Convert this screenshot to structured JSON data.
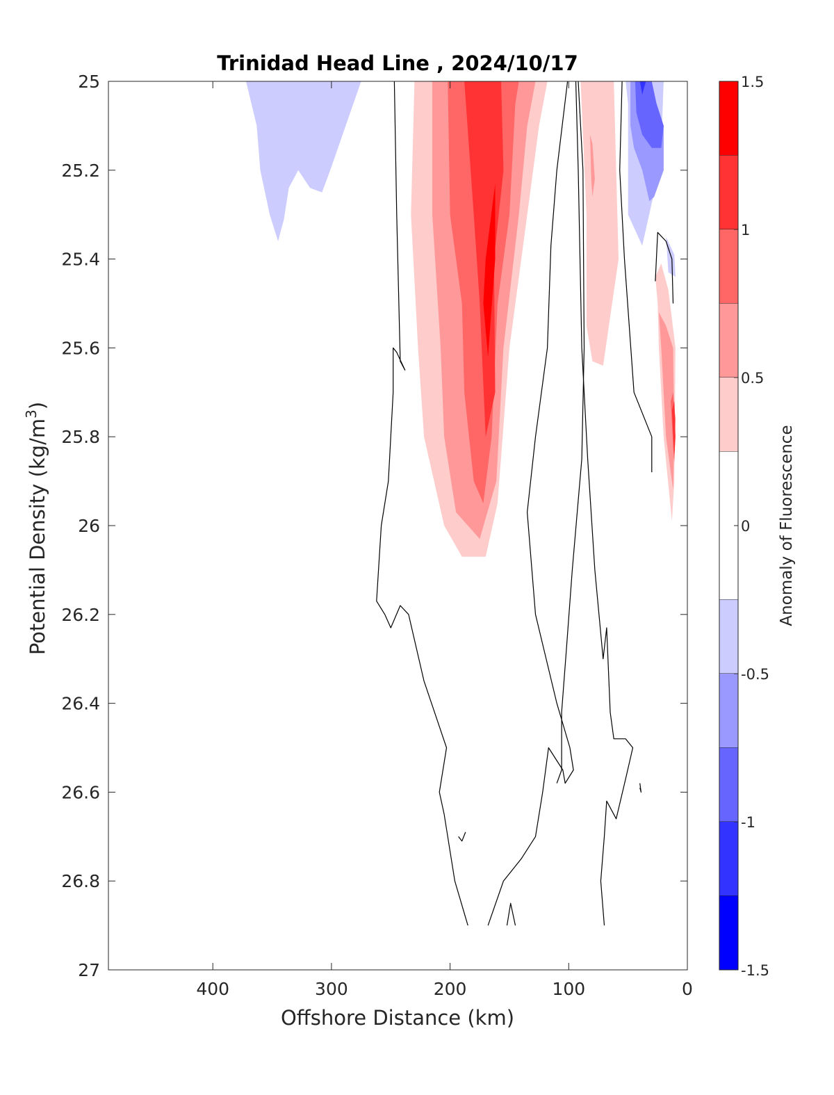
{
  "chart_data": {
    "type": "contour",
    "title": "Trinidad Head Line , 2024/10/17",
    "xlabel": "Offshore Distance (km)",
    "ylabel_main": "Potential Density (kg/m",
    "ylabel_sup": "3",
    "ylabel_close": ")",
    "xlim": [
      488,
      0
    ],
    "x_reversed": true,
    "ylim": [
      25,
      27
    ],
    "y_reversed": true,
    "x_ticks": [
      400,
      300,
      200,
      100,
      0
    ],
    "x_tick_labels": [
      "400",
      "300",
      "200",
      "100",
      "0"
    ],
    "y_ticks": [
      25,
      25.2,
      25.4,
      25.6,
      25.8,
      26,
      26.2,
      26.4,
      26.6,
      26.8,
      27
    ],
    "y_tick_labels": [
      "25",
      "25.2",
      "25.4",
      "25.6",
      "25.8",
      "26",
      "26.2",
      "26.4",
      "26.6",
      "26.8",
      "27"
    ],
    "grid": false,
    "colorbar": {
      "label": "Anomaly of Fluorescence",
      "range": [
        -1.5,
        1.5
      ],
      "ticks": [
        1.5,
        1,
        0.5,
        0,
        -0.5,
        -1,
        -1.5
      ],
      "tick_labels": [
        "1.5",
        "1",
        "0.5",
        "0",
        "-0.5",
        "-1",
        "-1.5"
      ],
      "levels": [
        {
          "from": 1.25,
          "to": 1.5,
          "color": "#ff0000"
        },
        {
          "from": 1.0,
          "to": 1.25,
          "color": "#ff3333"
        },
        {
          "from": 0.75,
          "to": 1.0,
          "color": "#ff6666"
        },
        {
          "from": 0.5,
          "to": 0.75,
          "color": "#ff9999"
        },
        {
          "from": 0.25,
          "to": 0.5,
          "color": "#ffcccc"
        },
        {
          "from": -0.25,
          "to": 0.25,
          "color": "#ffffff"
        },
        {
          "from": -0.5,
          "to": -0.25,
          "color": "#ccccff"
        },
        {
          "from": -0.75,
          "to": -0.5,
          "color": "#9999ff"
        },
        {
          "from": -1.0,
          "to": -0.75,
          "color": "#6666ff"
        },
        {
          "from": -1.25,
          "to": -1.0,
          "color": "#3333ff"
        },
        {
          "from": -1.5,
          "to": -1.25,
          "color": "#0000ff"
        }
      ]
    },
    "filled_regions": [
      {
        "level": -0.25,
        "color": "#ccccff",
        "points": [
          [
            372,
            25
          ],
          [
            363,
            25.1
          ],
          [
            360,
            25.2
          ],
          [
            352,
            25.3
          ],
          [
            345,
            25.36
          ],
          [
            340,
            25.31
          ],
          [
            336,
            25.24
          ],
          [
            328,
            25.2
          ],
          [
            318,
            25.24
          ],
          [
            308,
            25.25
          ],
          [
            301,
            25.2
          ],
          [
            288,
            25.1
          ],
          [
            275,
            25
          ]
        ]
      },
      {
        "level": 0.25,
        "color": "#ffcccc",
        "points": [
          [
            230,
            25
          ],
          [
            233,
            25.3
          ],
          [
            227,
            25.6
          ],
          [
            222,
            25.8
          ],
          [
            205,
            26
          ],
          [
            190,
            26.07
          ],
          [
            170,
            26.07
          ],
          [
            160,
            25.95
          ],
          [
            150,
            25.6
          ],
          [
            135,
            25.3
          ],
          [
            125,
            25.1
          ],
          [
            118,
            25
          ]
        ]
      },
      {
        "level": 0.5,
        "color": "#ff9999",
        "points": [
          [
            215,
            25
          ],
          [
            215,
            25.3
          ],
          [
            208,
            25.6
          ],
          [
            205,
            25.8
          ],
          [
            195,
            25.97
          ],
          [
            175,
            26.03
          ],
          [
            161,
            25.9
          ],
          [
            155,
            25.6
          ],
          [
            142,
            25.3
          ],
          [
            135,
            25.1
          ],
          [
            128,
            25
          ]
        ]
      },
      {
        "level": 0.75,
        "color": "#ff6666",
        "points": [
          [
            202,
            25
          ],
          [
            200,
            25.3
          ],
          [
            190,
            25.5
          ],
          [
            188,
            25.7
          ],
          [
            180,
            25.9
          ],
          [
            172,
            25.95
          ],
          [
            165,
            25.8
          ],
          [
            160,
            25.5
          ],
          [
            150,
            25.3
          ],
          [
            145,
            25.05
          ],
          [
            142,
            25
          ]
        ]
      },
      {
        "level": 1.0,
        "color": "#ff3333",
        "points": [
          [
            188,
            25
          ],
          [
            180,
            25.3
          ],
          [
            175,
            25.5
          ],
          [
            170,
            25.8
          ],
          [
            162,
            25.7
          ],
          [
            163,
            25.4
          ],
          [
            155,
            25.2
          ],
          [
            157,
            25
          ]
        ]
      },
      {
        "level": 1.25,
        "color": "#ff0000",
        "points": [
          [
            162,
            25.23
          ],
          [
            170,
            25.4
          ],
          [
            172,
            25.5
          ],
          [
            168,
            25.62
          ],
          [
            162,
            25.4
          ]
        ]
      },
      {
        "level": 0.25,
        "color": "#ffcccc",
        "points": [
          [
            90,
            25
          ],
          [
            85,
            25.3
          ],
          [
            85,
            25.55
          ],
          [
            80,
            25.63
          ],
          [
            71,
            25.64
          ],
          [
            58,
            25.4
          ],
          [
            61,
            25.1
          ],
          [
            62,
            25
          ]
        ]
      },
      {
        "level": 0.5,
        "color": "#ff9999",
        "points": [
          [
            82,
            25.12
          ],
          [
            81,
            25.22
          ],
          [
            80,
            25.26
          ],
          [
            78,
            25.22
          ],
          [
            80,
            25.14
          ]
        ]
      },
      {
        "level": -0.25,
        "color": "#ccccff",
        "points": [
          [
            52,
            25
          ],
          [
            50,
            25.05
          ],
          [
            50,
            25.2
          ],
          [
            50,
            25.3
          ],
          [
            38,
            25.37
          ],
          [
            28,
            25.25
          ],
          [
            22,
            25.15
          ],
          [
            20,
            25
          ],
          [
            52,
            25
          ]
        ]
      },
      {
        "level": -0.5,
        "color": "#9999ff",
        "points": [
          [
            48,
            25
          ],
          [
            48,
            25.1
          ],
          [
            45,
            25.15
          ],
          [
            38,
            25.2
          ],
          [
            32,
            25.27
          ],
          [
            28,
            25.26
          ],
          [
            20,
            25.2
          ],
          [
            20,
            25.1
          ],
          [
            32,
            25
          ],
          [
            48,
            25
          ]
        ]
      },
      {
        "level": -0.75,
        "color": "#6666ff",
        "points": [
          [
            44,
            25
          ],
          [
            43,
            25.07
          ],
          [
            38,
            25.12
          ],
          [
            30,
            25.15
          ],
          [
            22,
            25.15
          ],
          [
            20,
            25.1
          ],
          [
            26,
            25.05
          ],
          [
            30,
            25
          ]
        ]
      },
      {
        "level": -1.0,
        "color": "#3333ff",
        "points": [
          [
            40,
            25
          ],
          [
            38,
            25.03
          ],
          [
            36,
            25.01
          ],
          [
            35,
            25
          ]
        ]
      },
      {
        "level": -0.25,
        "color": "#ccccff",
        "points": [
          [
            18,
            25.35
          ],
          [
            11,
            25.39
          ],
          [
            10,
            25.44
          ],
          [
            16,
            25.43
          ]
        ]
      },
      {
        "level": 0.25,
        "color": "#ffcccc",
        "points": [
          [
            27,
            25.44
          ],
          [
            25,
            25.5
          ],
          [
            24,
            25.6
          ],
          [
            20,
            25.8
          ],
          [
            13,
            25.99
          ],
          [
            11,
            25.9
          ],
          [
            10,
            25.6
          ],
          [
            16,
            25.47
          ],
          [
            22,
            25.41
          ]
        ]
      },
      {
        "level": 0.5,
        "color": "#ff9999",
        "points": [
          [
            24,
            25.52
          ],
          [
            22,
            25.6
          ],
          [
            18,
            25.8
          ],
          [
            12,
            25.92
          ],
          [
            11,
            25.8
          ],
          [
            12,
            25.6
          ],
          [
            18,
            25.55
          ]
        ]
      },
      {
        "level": 0.75,
        "color": "#ff6666",
        "points": [
          [
            14,
            25.72
          ],
          [
            12,
            25.82
          ],
          [
            11,
            25.86
          ],
          [
            10,
            25.76
          ],
          [
            12,
            25.7
          ]
        ]
      },
      {
        "level": 1.0,
        "color": "#ff3333",
        "points": [
          [
            13,
            25.74
          ],
          [
            11,
            25.85
          ],
          [
            10,
            25.8
          ],
          [
            11,
            25.72
          ]
        ]
      }
    ],
    "zero_contours": [
      {
        "points": [
          [
            247,
            25
          ],
          [
            245,
            25.3
          ],
          [
            242,
            25.63
          ],
          [
            238,
            25.65
          ],
          [
            245,
            25.61
          ],
          [
            248,
            25.6
          ],
          [
            248,
            25.7
          ],
          [
            252,
            25.9
          ],
          [
            258,
            26
          ],
          [
            262,
            26.17
          ],
          [
            255,
            26.2
          ],
          [
            250,
            26.23
          ],
          [
            242,
            26.18
          ],
          [
            235,
            26.2
          ],
          [
            222,
            26.35
          ],
          [
            203,
            26.5
          ],
          [
            209,
            26.6
          ],
          [
            205,
            26.65
          ],
          [
            202,
            26.7
          ],
          [
            196,
            26.8
          ],
          [
            185,
            26.9
          ]
        ]
      },
      {
        "points": [
          [
            101,
            25
          ],
          [
            110,
            25.2
          ],
          [
            115,
            25.37
          ],
          [
            118,
            25.6
          ],
          [
            128,
            25.8
          ],
          [
            135,
            25.97
          ],
          [
            128,
            26.2
          ],
          [
            110,
            26.4
          ],
          [
            99,
            26.5
          ],
          [
            96,
            26.55
          ],
          [
            103,
            26.58
          ],
          [
            105,
            26.55
          ],
          [
            117,
            26.5
          ],
          [
            122,
            26.6
          ],
          [
            128,
            26.7
          ],
          [
            140,
            26.75
          ],
          [
            155,
            26.8
          ],
          [
            168,
            26.9
          ]
        ]
      },
      {
        "points": [
          [
            92,
            25
          ],
          [
            88,
            25.2
          ],
          [
            87,
            25.6
          ],
          [
            89,
            25.85
          ],
          [
            97,
            26.1
          ],
          [
            102,
            26.28
          ],
          [
            106,
            26.42
          ],
          [
            106,
            26.55
          ],
          [
            110,
            26.58
          ]
        ]
      },
      {
        "points": [
          [
            94,
            25
          ],
          [
            92,
            25.2
          ],
          [
            89,
            25.6
          ],
          [
            84,
            25.85
          ],
          [
            78,
            26.1
          ],
          [
            71,
            26.3
          ],
          [
            68,
            26.23
          ],
          [
            65,
            26.42
          ],
          [
            62,
            26.48
          ],
          [
            52,
            26.48
          ],
          [
            46,
            26.5
          ],
          [
            52,
            26.57
          ],
          [
            60,
            26.66
          ],
          [
            68,
            26.62
          ],
          [
            70,
            26.7
          ],
          [
            73,
            26.8
          ],
          [
            70,
            26.9
          ]
        ]
      },
      {
        "points": [
          [
            55,
            25
          ],
          [
            57,
            25.2
          ],
          [
            53,
            25.4
          ],
          [
            45,
            25.7
          ],
          [
            30,
            25.8
          ],
          [
            30,
            25.88
          ]
        ]
      },
      {
        "points": [
          [
            27,
            25.45
          ],
          [
            25,
            25.34
          ],
          [
            18,
            25.36
          ],
          [
            13,
            25.4
          ],
          [
            12,
            25.5
          ]
        ]
      },
      {
        "points": [
          [
            152,
            26.9
          ],
          [
            149,
            26.85
          ],
          [
            145,
            26.9
          ]
        ]
      },
      {
        "points": [
          [
            193,
            26.7
          ],
          [
            190,
            26.71
          ],
          [
            187,
            26.69
          ]
        ]
      },
      {
        "points": [
          [
            40,
            26.58
          ],
          [
            39,
            26.6
          ],
          [
            40,
            26.59
          ]
        ]
      }
    ]
  }
}
